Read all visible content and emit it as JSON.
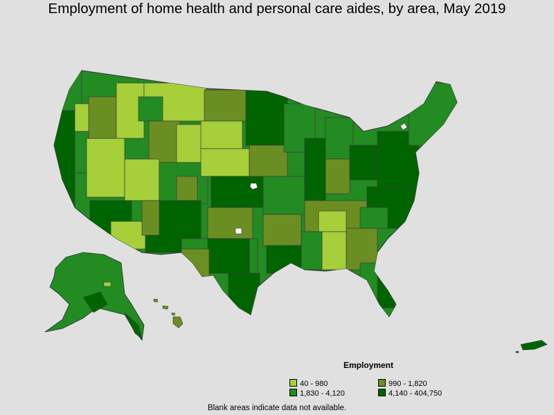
{
  "title": "Employment of home health and personal care aides, by area, May 2019",
  "legend": {
    "title": "Employment",
    "items": [
      {
        "label": "40 - 980",
        "color": "#a6cf3a"
      },
      {
        "label": "990 - 1,820",
        "color": "#6b8e23"
      },
      {
        "label": "1,830 - 4,120",
        "color": "#228b22"
      },
      {
        "label": "4,140 - 404,750",
        "color": "#006400"
      }
    ]
  },
  "note": "Blank areas indicate data not available.",
  "colors": {
    "background": "#e0e0e0",
    "borders": "#4a4a4a",
    "class1": "#a6cf3a",
    "class2": "#6b8e23",
    "class3": "#228b22",
    "class4": "#006400"
  }
}
